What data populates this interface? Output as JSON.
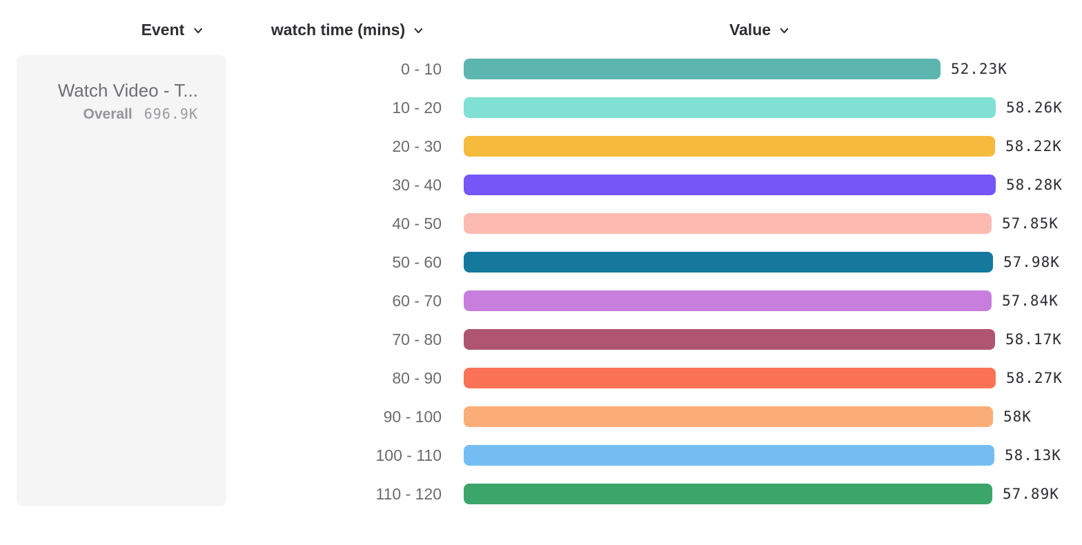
{
  "header": {
    "columns": [
      {
        "label": "Event",
        "icon": "chevron-down-icon"
      },
      {
        "label": "watch time (mins)",
        "icon": "chevron-down-icon"
      },
      {
        "label": "Value",
        "icon": "chevron-down-icon"
      }
    ]
  },
  "event_card": {
    "name": "Watch Video - T...",
    "overall_label": "Overall",
    "overall_value": "696.9K"
  },
  "chart_data": {
    "type": "bar",
    "orientation": "horizontal",
    "title": "",
    "xlabel": "Value",
    "ylabel": "watch time (mins)",
    "categories": [
      "0 - 10",
      "10 - 20",
      "20 - 30",
      "30 - 40",
      "40 - 50",
      "50 - 60",
      "60 - 70",
      "70 - 80",
      "80 - 90",
      "90 - 100",
      "100 - 110",
      "110 - 120"
    ],
    "values": [
      52230,
      58260,
      58220,
      58280,
      57850,
      57980,
      57840,
      58170,
      58270,
      58000,
      58130,
      57890
    ],
    "value_labels": [
      "52.23K",
      "58.26K",
      "58.22K",
      "58.28K",
      "57.85K",
      "57.98K",
      "57.84K",
      "58.17K",
      "58.27K",
      "58K",
      "58.13K",
      "57.89K"
    ],
    "bar_colors": [
      "#5CB6AF",
      "#80E0D3",
      "#F6BB3D",
      "#7656F7",
      "#FCBAB1",
      "#15799E",
      "#C77EDD",
      "#B05571",
      "#FB7356",
      "#FBAD78",
      "#74BEF4",
      "#3BA56A"
    ],
    "xlim": [
      0,
      58280
    ],
    "grid": false,
    "legend": false
  }
}
